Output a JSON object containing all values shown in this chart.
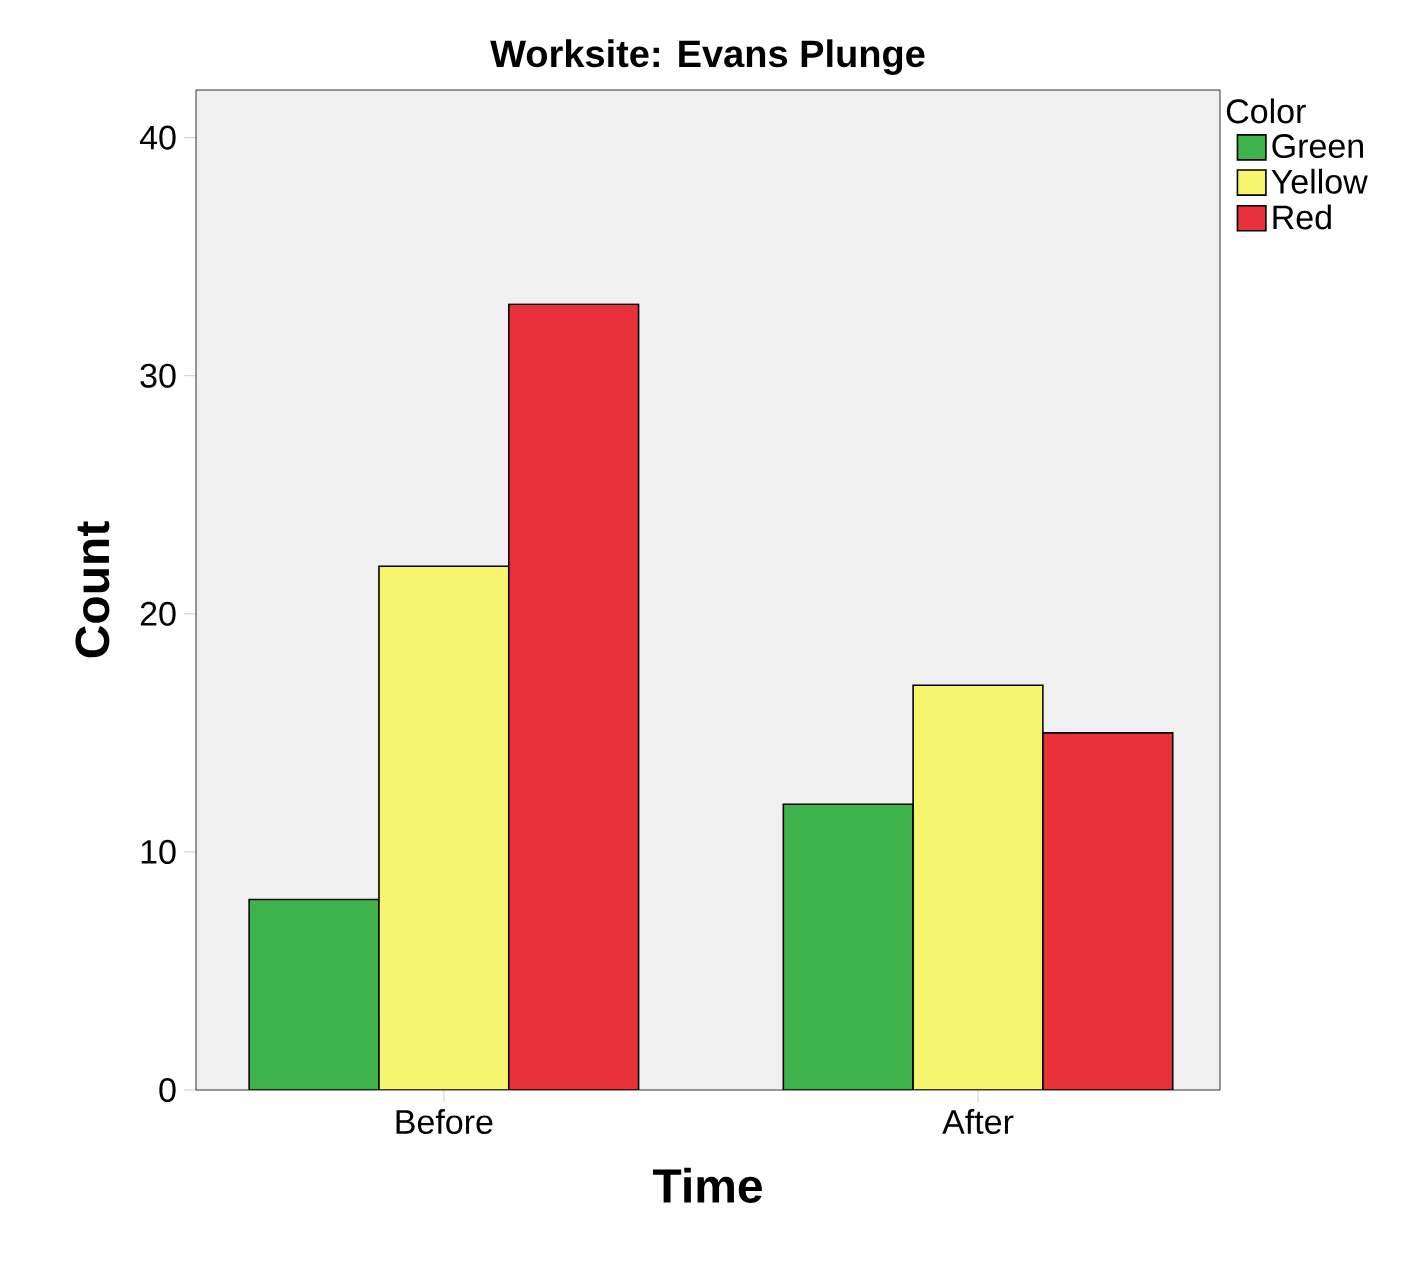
{
  "chart_data": {
    "type": "bar",
    "title": "Worksite: Evans Plunge",
    "xlabel": "Time",
    "ylabel": "Count",
    "legend_title": "Color",
    "categories": [
      "Before",
      "After"
    ],
    "series": [
      {
        "name": "Green",
        "color": "#3cb44b",
        "values": [
          8,
          12
        ]
      },
      {
        "name": "Yellow",
        "color": "#f7f56e",
        "values": [
          22,
          17
        ]
      },
      {
        "name": "Red",
        "color": "#e8313a",
        "values": [
          33,
          15
        ]
      }
    ],
    "ylim": [
      0,
      42
    ],
    "yticks": [
      0,
      10,
      20,
      30,
      40
    ],
    "grid": false,
    "legend": "right"
  }
}
